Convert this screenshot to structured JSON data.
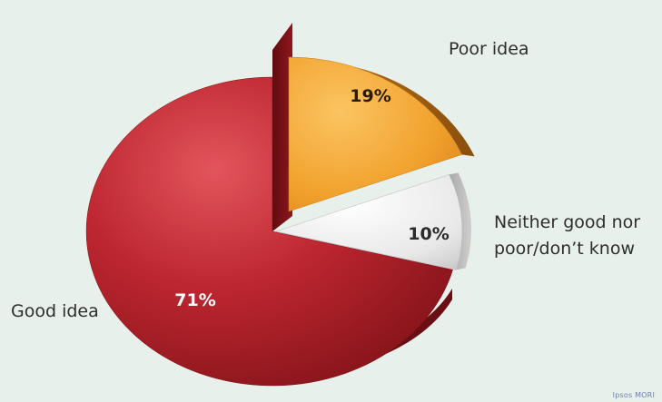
{
  "chart_data": {
    "type": "pie",
    "categories": [
      "Poor idea",
      "Neither good nor poor/don’t know",
      "Good idea"
    ],
    "values": [
      19,
      10,
      71
    ],
    "value_labels": [
      "19%",
      "10%",
      "71%"
    ],
    "category_labels": {
      "poor": "Poor idea",
      "neither_line1": "Neither good nor",
      "neither_line2": "poor/don’t know",
      "good": "Good idea"
    },
    "exploded_slice": "Poor idea",
    "legend": "none (direct labels)",
    "colors": {
      "poor": "#f0a030",
      "neither": "#e9e9e9",
      "good": "#b3202a",
      "background": "#e7f0ea"
    }
  },
  "source_note": "Ipsos MORI"
}
